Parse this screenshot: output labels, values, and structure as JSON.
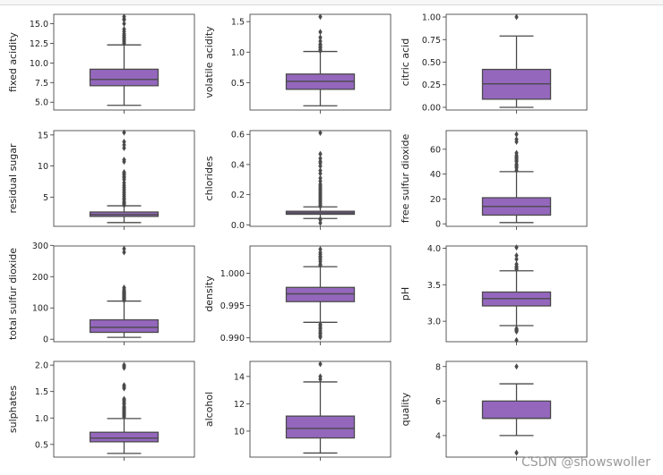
{
  "watermark": "CSDN @showswoller",
  "colors": {
    "box": "#9467bd",
    "line": "#4a4a4a",
    "frame": "#333333",
    "text": "#222222"
  },
  "chart_data": [
    {
      "type": "box",
      "ylabel": "fixed acidity",
      "ylim": [
        4.0,
        16.2
      ],
      "yticks": [
        5.0,
        7.5,
        10.0,
        12.5,
        15.0
      ],
      "tick_decimals": 1,
      "whisker_low": 4.6,
      "q1": 7.1,
      "median": 7.9,
      "q3": 9.2,
      "whisker_high": 12.3,
      "outliers": [
        12.5,
        12.7,
        12.9,
        13.0,
        13.2,
        13.3,
        13.5,
        13.7,
        14.0,
        14.3,
        15.0,
        15.5,
        15.6,
        15.9
      ]
    },
    {
      "type": "box",
      "ylabel": "volatile acidity",
      "ylim": [
        0.05,
        1.62
      ],
      "yticks": [
        0.5,
        1.0,
        1.5
      ],
      "tick_decimals": 1,
      "whisker_low": 0.12,
      "q1": 0.39,
      "median": 0.52,
      "q3": 0.64,
      "whisker_high": 1.01,
      "outliers": [
        1.02,
        1.04,
        1.07,
        1.09,
        1.12,
        1.13,
        1.18,
        1.24,
        1.33,
        1.58
      ]
    },
    {
      "type": "box",
      "ylabel": "citric acid",
      "ylim": [
        -0.03,
        1.03
      ],
      "yticks": [
        0.0,
        0.25,
        0.5,
        0.75,
        1.0
      ],
      "tick_decimals": 2,
      "whisker_low": 0.0,
      "q1": 0.09,
      "median": 0.26,
      "q3": 0.42,
      "whisker_high": 0.79,
      "outliers": [
        1.0
      ]
    },
    {
      "type": "box",
      "ylabel": "residual sugar",
      "ylim": [
        0.3,
        15.7
      ],
      "yticks": [
        5,
        10,
        15
      ],
      "tick_decimals": 0,
      "whisker_low": 0.9,
      "q1": 1.9,
      "median": 2.2,
      "q3": 2.6,
      "whisker_high": 3.6,
      "outliers": [
        3.7,
        3.9,
        4.1,
        4.3,
        4.6,
        4.8,
        5.1,
        5.4,
        5.7,
        6.0,
        6.3,
        6.6,
        6.9,
        7.3,
        7.8,
        8.1,
        8.3,
        8.6,
        8.8,
        9.0,
        10.7,
        11.0,
        12.9,
        13.4,
        13.9,
        15.4
      ]
    },
    {
      "type": "box",
      "ylabel": "chlorides",
      "ylim": [
        -0.01,
        0.625
      ],
      "yticks": [
        0.0,
        0.2,
        0.4,
        0.6
      ],
      "tick_decimals": 1,
      "whisker_low": 0.042,
      "q1": 0.07,
      "median": 0.079,
      "q3": 0.09,
      "whisker_high": 0.119,
      "outliers": [
        0.012,
        0.034,
        0.039,
        0.122,
        0.13,
        0.14,
        0.15,
        0.16,
        0.17,
        0.18,
        0.19,
        0.2,
        0.21,
        0.22,
        0.23,
        0.24,
        0.25,
        0.26,
        0.27,
        0.29,
        0.31,
        0.34,
        0.36,
        0.39,
        0.41,
        0.42,
        0.44,
        0.47,
        0.61
      ]
    },
    {
      "type": "box",
      "ylabel": "free sulfur dioxide",
      "ylim": [
        -2,
        75
      ],
      "yticks": [
        0,
        20,
        40,
        60
      ],
      "tick_decimals": 0,
      "whisker_low": 1,
      "q1": 7,
      "median": 14,
      "q3": 21,
      "whisker_high": 42,
      "outliers": [
        43,
        45,
        46,
        47,
        48,
        50,
        51,
        52,
        53,
        54,
        55,
        57,
        66,
        68,
        72
      ]
    },
    {
      "type": "box",
      "ylabel": "total sulfur dioxide",
      "ylim": [
        -8,
        298
      ],
      "yticks": [
        0,
        100,
        200,
        300
      ],
      "tick_decimals": 0,
      "whisker_low": 6,
      "q1": 22,
      "median": 38,
      "q3": 62,
      "whisker_high": 122,
      "outliers": [
        124,
        127,
        128,
        130,
        131,
        133,
        134,
        135,
        136,
        139,
        141,
        143,
        144,
        145,
        147,
        148,
        149,
        151,
        152,
        153,
        155,
        160,
        165,
        278,
        289
      ]
    },
    {
      "type": "box",
      "ylabel": "density",
      "ylim": [
        0.9894,
        1.0042
      ],
      "yticks": [
        0.99,
        0.995,
        1.0
      ],
      "tick_decimals": 3,
      "whisker_low": 0.9924,
      "q1": 0.9956,
      "median": 0.9968,
      "q3": 0.9978,
      "whisker_high": 1.001,
      "outliers": [
        0.9901,
        0.9903,
        0.9906,
        0.9908,
        0.9911,
        0.9914,
        0.9916,
        0.9919,
        0.9921,
        1.0012,
        1.0014,
        1.0018,
        1.0021,
        1.0024,
        1.0026,
        1.0029,
        1.0032,
        1.0037
      ]
    },
    {
      "type": "box",
      "ylabel": "pH",
      "ylim": [
        2.72,
        4.03
      ],
      "yticks": [
        3.0,
        3.5,
        4.0
      ],
      "tick_decimals": 1,
      "whisker_low": 2.94,
      "q1": 3.21,
      "median": 3.31,
      "q3": 3.4,
      "whisker_high": 3.69,
      "outliers": [
        2.74,
        2.86,
        2.87,
        2.88,
        2.89,
        2.9,
        3.71,
        3.72,
        3.74,
        3.75,
        3.78,
        3.85,
        3.9,
        4.01
      ]
    },
    {
      "type": "box",
      "ylabel": "sulphates",
      "ylim": [
        0.26,
        2.07
      ],
      "yticks": [
        0.5,
        1.0,
        1.5,
        2.0
      ],
      "tick_decimals": 1,
      "whisker_low": 0.33,
      "q1": 0.55,
      "median": 0.62,
      "q3": 0.73,
      "whisker_high": 0.99,
      "outliers": [
        1.02,
        1.04,
        1.06,
        1.08,
        1.1,
        1.12,
        1.14,
        1.16,
        1.18,
        1.2,
        1.22,
        1.26,
        1.28,
        1.31,
        1.34,
        1.36,
        1.56,
        1.59,
        1.62,
        1.95,
        1.98,
        2.0
      ]
    },
    {
      "type": "box",
      "ylabel": "alcohol",
      "ylim": [
        8.1,
        15.1
      ],
      "yticks": [
        10,
        12,
        14
      ],
      "tick_decimals": 0,
      "whisker_low": 8.4,
      "q1": 9.5,
      "median": 10.2,
      "q3": 11.1,
      "whisker_high": 13.6,
      "outliers": [
        13.8,
        14.0,
        14.9
      ]
    },
    {
      "type": "box",
      "ylabel": "quality",
      "ylim": [
        2.75,
        8.3
      ],
      "yticks": [
        4,
        6,
        8
      ],
      "tick_decimals": 0,
      "whisker_low": 4,
      "q1": 5,
      "median": 5,
      "q3": 6,
      "whisker_high": 7,
      "outliers": [
        3,
        8
      ]
    }
  ]
}
